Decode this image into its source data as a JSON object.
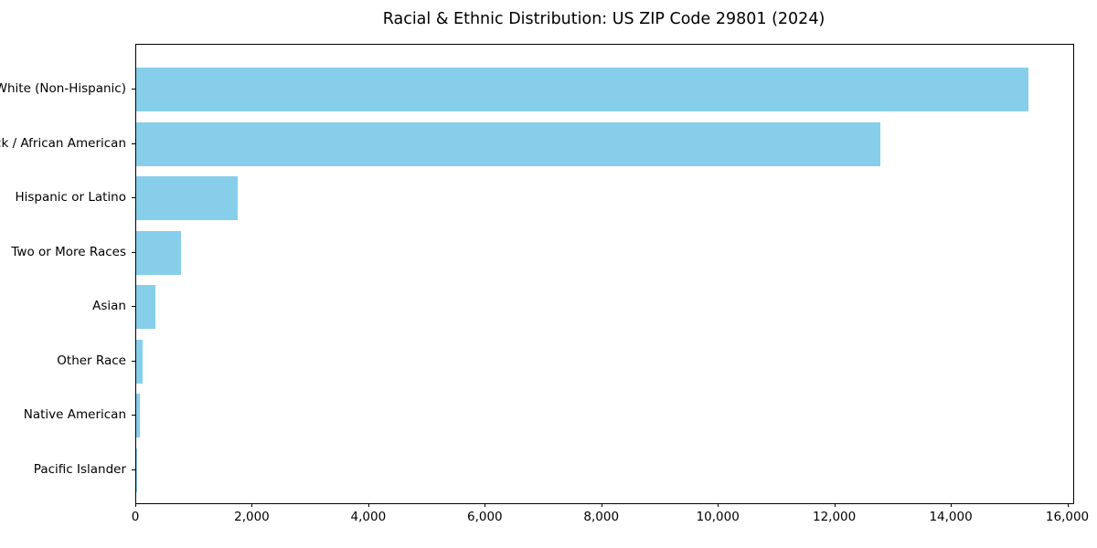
{
  "title": "Racial & Ethnic Distribution: US ZIP Code 29801 (2024)",
  "chart_data": {
    "type": "bar",
    "orientation": "horizontal",
    "title": "Racial & Ethnic Distribution: US ZIP Code 29801 (2024)",
    "xlabel": "",
    "ylabel": "",
    "categories": [
      "White (Non-Hispanic)",
      "Black / African American",
      "Hispanic or Latino",
      "Two or More Races",
      "Asian",
      "Other Race",
      "Native American",
      "Pacific Islander"
    ],
    "values": [
      15320,
      12770,
      1745,
      765,
      330,
      110,
      62,
      8
    ],
    "xlim": [
      0,
      16086
    ],
    "x_tick_values": [
      0,
      2000,
      4000,
      6000,
      8000,
      10000,
      12000,
      14000,
      16000
    ],
    "x_tick_labels": [
      "0",
      "2,000",
      "4,000",
      "6,000",
      "8,000",
      "10,000",
      "12,000",
      "14,000",
      "16,000"
    ],
    "bar_color": "#87CEEB",
    "grid": false,
    "legend": null
  }
}
